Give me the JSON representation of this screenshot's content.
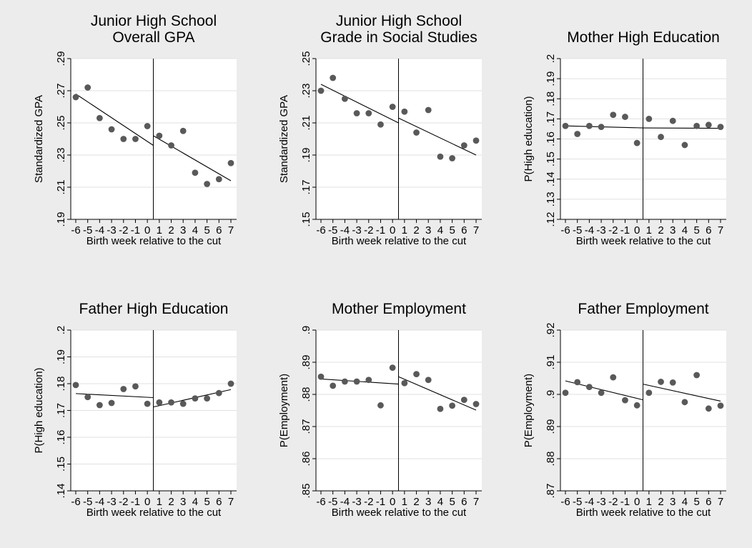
{
  "figure": {
    "background": "#ececec",
    "plot_background": "#ffffff",
    "grid_color": "#e1e1e1",
    "marker_color": "#595959",
    "line_color": "#000000"
  },
  "chart_data": [
    {
      "type": "scatter",
      "title": [
        "Junior High School",
        "Overall GPA"
      ],
      "xlabel": "Birth week relative to the cut",
      "ylabel": "Standardized GPA",
      "xticks": [
        -6,
        -5,
        -4,
        -3,
        -2,
        -1,
        0,
        1,
        2,
        3,
        4,
        5,
        6,
        7
      ],
      "yticks": [
        ".19",
        ".21",
        ".23",
        ".25",
        ".27",
        ".29"
      ],
      "ylim": [
        0.19,
        0.29
      ],
      "grid": true,
      "cutoff": 0.5,
      "x": [
        -6,
        -5,
        -4,
        -3,
        -2,
        -1,
        0,
        1,
        2,
        3,
        4,
        5,
        6,
        7
      ],
      "y": [
        0.266,
        0.272,
        0.253,
        0.246,
        0.24,
        0.24,
        0.248,
        0.242,
        0.236,
        0.245,
        0.219,
        0.212,
        0.215,
        0.225
      ],
      "fit": [
        {
          "x": [
            -6,
            0.5
          ],
          "y": [
            0.268,
            0.236
          ]
        },
        {
          "x": [
            0.5,
            7
          ],
          "y": [
            0.242,
            0.214
          ]
        }
      ]
    },
    {
      "type": "scatter",
      "title": [
        "Junior High School",
        "Grade in Social Studies"
      ],
      "xlabel": "Birth week relative to the cut",
      "ylabel": "Standardized GPA",
      "xticks": [
        -6,
        -5,
        -4,
        -3,
        -2,
        -1,
        0,
        1,
        2,
        3,
        4,
        5,
        6,
        7
      ],
      "yticks": [
        ".15",
        ".17",
        ".19",
        ".21",
        ".23",
        ".25"
      ],
      "ylim": [
        0.15,
        0.25
      ],
      "grid": true,
      "cutoff": 0.5,
      "x": [
        -6,
        -5,
        -4,
        -3,
        -2,
        -1,
        0,
        1,
        2,
        3,
        4,
        5,
        6,
        7
      ],
      "y": [
        0.23,
        0.238,
        0.225,
        0.216,
        0.216,
        0.209,
        0.22,
        0.217,
        0.204,
        0.218,
        0.189,
        0.188,
        0.196,
        0.199
      ],
      "fit": [
        {
          "x": [
            -6,
            0.5
          ],
          "y": [
            0.234,
            0.21
          ]
        },
        {
          "x": [
            0.5,
            7
          ],
          "y": [
            0.213,
            0.19
          ]
        }
      ]
    },
    {
      "type": "scatter",
      "title": [
        "Mother High Education"
      ],
      "xlabel": "Birth week relative to the cut",
      "ylabel": "P(High education)",
      "xticks": [
        -6,
        -5,
        -4,
        -3,
        -2,
        -1,
        0,
        1,
        2,
        3,
        4,
        5,
        6,
        7
      ],
      "yticks": [
        ".12",
        ".13",
        ".14",
        ".15",
        ".16",
        ".17",
        ".18",
        ".19",
        ".2"
      ],
      "ylim": [
        0.12,
        0.2
      ],
      "grid": true,
      "cutoff": 0.5,
      "x": [
        -6,
        -5,
        -4,
        -3,
        -2,
        -1,
        0,
        1,
        2,
        3,
        4,
        5,
        6,
        7
      ],
      "y": [
        0.1665,
        0.1625,
        0.1665,
        0.166,
        0.172,
        0.171,
        0.158,
        0.17,
        0.161,
        0.169,
        0.157,
        0.1665,
        0.167,
        0.166
      ],
      "fit": [
        {
          "x": [
            -6,
            0.5
          ],
          "y": [
            0.1665,
            0.1655
          ]
        },
        {
          "x": [
            0.5,
            7
          ],
          "y": [
            0.1655,
            0.1653
          ]
        }
      ]
    },
    {
      "type": "scatter",
      "title": [
        "Father High Education"
      ],
      "xlabel": "Birth week relative to the cut",
      "ylabel": "P(High education)",
      "xticks": [
        -6,
        -5,
        -4,
        -3,
        -2,
        -1,
        0,
        1,
        2,
        3,
        4,
        5,
        6,
        7
      ],
      "yticks": [
        ".14",
        ".15",
        ".16",
        ".17",
        ".18",
        ".19",
        ".2"
      ],
      "ylim": [
        0.14,
        0.2
      ],
      "grid": true,
      "cutoff": 0.5,
      "x": [
        -6,
        -5,
        -4,
        -3,
        -2,
        -1,
        0,
        1,
        2,
        3,
        4,
        5,
        6,
        7
      ],
      "y": [
        0.1795,
        0.175,
        0.172,
        0.1728,
        0.178,
        0.179,
        0.1725,
        0.173,
        0.173,
        0.1725,
        0.1745,
        0.1745,
        0.1765,
        0.18
      ],
      "fit": [
        {
          "x": [
            -6,
            0.5
          ],
          "y": [
            0.1763,
            0.1748
          ]
        },
        {
          "x": [
            0.5,
            7
          ],
          "y": [
            0.1713,
            0.1778
          ]
        }
      ]
    },
    {
      "type": "scatter",
      "title": [
        "Mother Employment"
      ],
      "xlabel": "Birth week relative to the cut",
      "ylabel": "P(Employment)",
      "xticks": [
        -6,
        -5,
        -4,
        -3,
        -2,
        -1,
        0,
        1,
        2,
        3,
        4,
        5,
        6,
        7
      ],
      "yticks": [
        ".85",
        ".86",
        ".87",
        ".88",
        ".89",
        ".9"
      ],
      "ylim": [
        0.85,
        0.9
      ],
      "grid": true,
      "cutoff": 0.5,
      "x": [
        -6,
        -5,
        -4,
        -3,
        -2,
        -1,
        0,
        1,
        2,
        3,
        4,
        5,
        6,
        7
      ],
      "y": [
        0.8855,
        0.8827,
        0.884,
        0.884,
        0.8845,
        0.8766,
        0.8883,
        0.8835,
        0.8863,
        0.8845,
        0.8755,
        0.8765,
        0.8783,
        0.877
      ],
      "fit": [
        {
          "x": [
            -6,
            0.5
          ],
          "y": [
            0.8848,
            0.8832
          ]
        },
        {
          "x": [
            0.5,
            7
          ],
          "y": [
            0.8855,
            0.8751
          ]
        }
      ]
    },
    {
      "type": "scatter",
      "title": [
        "Father Employment"
      ],
      "xlabel": "Birth week relative to the cut",
      "ylabel": "P(Employment)",
      "xticks": [
        -6,
        -5,
        -4,
        -3,
        -2,
        -1,
        0,
        1,
        2,
        3,
        4,
        5,
        6,
        7
      ],
      "yticks": [
        ".87",
        ".88",
        ".89",
        ".9",
        ".91",
        ".92"
      ],
      "ylim": [
        0.87,
        0.92
      ],
      "grid": true,
      "cutoff": 0.5,
      "x": [
        -6,
        -5,
        -4,
        -3,
        -2,
        -1,
        0,
        1,
        2,
        3,
        4,
        5,
        6,
        7
      ],
      "y": [
        0.9005,
        0.9038,
        0.9023,
        0.9005,
        0.9053,
        0.8982,
        0.8966,
        0.9005,
        0.9039,
        0.9037,
        0.8976,
        0.906,
        0.8956,
        0.8965
      ],
      "fit": [
        {
          "x": [
            -6,
            0.5
          ],
          "y": [
            0.9042,
            0.8983
          ]
        },
        {
          "x": [
            0.5,
            7
          ],
          "y": [
            0.9032,
            0.8979
          ]
        }
      ]
    }
  ]
}
